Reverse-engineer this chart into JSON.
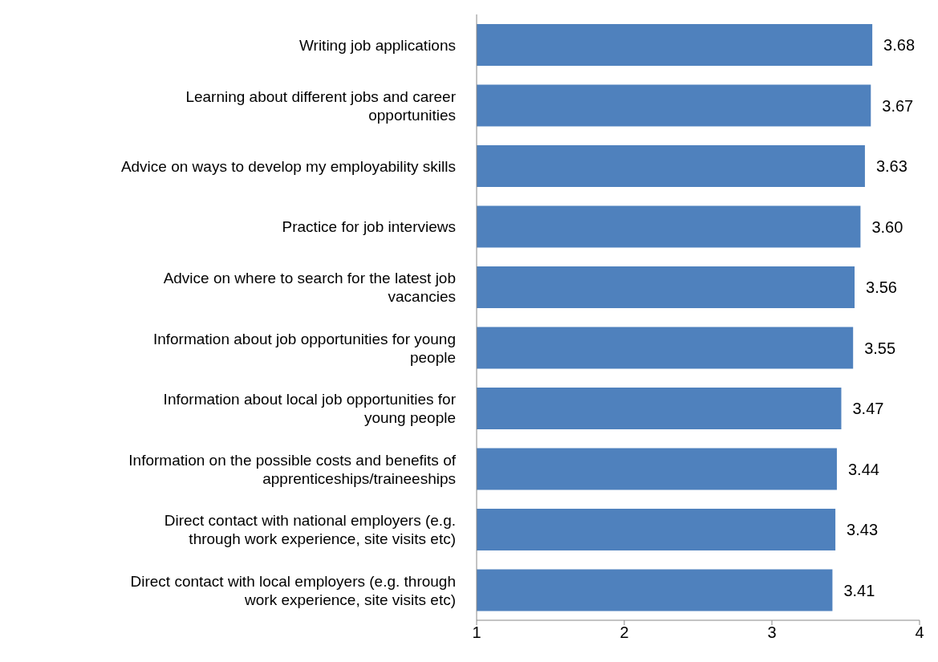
{
  "chart_data": {
    "type": "bar",
    "orientation": "horizontal",
    "categories": [
      "Writing job applications",
      "Learning about different jobs and career opportunities",
      "Advice on ways to develop my employability skills",
      "Practice for job interviews",
      "Advice on where to search for the latest job vacancies",
      "Information about job opportunities for young people",
      "Information about local job opportunities for young people",
      "Information on the possible costs and benefits of apprenticeships/traineeships",
      "Direct contact with national employers (e.g. through work experience, site visits etc)",
      "Direct contact with local employers (e.g. through work experience, site visits etc)"
    ],
    "values": [
      3.68,
      3.67,
      3.63,
      3.6,
      3.56,
      3.55,
      3.47,
      3.44,
      3.43,
      3.41
    ],
    "value_labels": [
      "3.68",
      "3.67",
      "3.63",
      "3.60",
      "3.56",
      "3.55",
      "3.47",
      "3.44",
      "3.43",
      "3.41"
    ],
    "color": "#4f81bd",
    "xlim": [
      1,
      4
    ],
    "xticks": [
      1,
      2,
      3,
      4
    ],
    "grid": false,
    "legend": false
  }
}
